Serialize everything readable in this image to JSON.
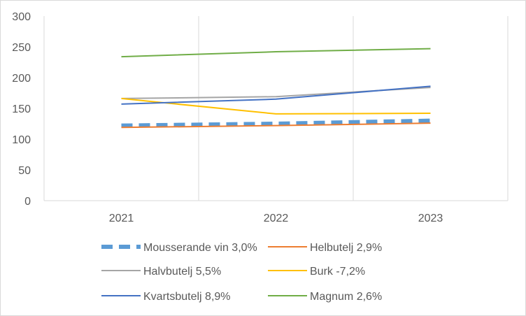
{
  "chart_data": {
    "type": "line",
    "title": "",
    "xlabel": "",
    "ylabel": "",
    "categories": [
      "2021",
      "2022",
      "2023"
    ],
    "ylim": [
      0,
      300
    ],
    "yticks": [
      "0",
      "50",
      "100",
      "150",
      "200",
      "250",
      "300"
    ],
    "grid": "vertical",
    "legend_position": "bottom",
    "series": [
      {
        "name": "Mousserande vin 3,0%",
        "values": [
          122,
          125,
          130
        ],
        "color": "#5b9bd5",
        "style": "dashed-thick"
      },
      {
        "name": "Helbutelj 2,9%",
        "values": [
          119,
          122,
          126
        ],
        "color": "#ed7d31",
        "style": "solid"
      },
      {
        "name": "Halvbutelj 5,5%",
        "values": [
          166,
          169,
          184
        ],
        "color": "#a5a5a5",
        "style": "solid"
      },
      {
        "name": "Burk -7,2%",
        "values": [
          166,
          141,
          142
        ],
        "color": "#ffc000",
        "style": "solid"
      },
      {
        "name": "Kvartsbutelj 8,9%",
        "values": [
          157,
          165,
          186
        ],
        "color": "#4472c4",
        "style": "solid"
      },
      {
        "name": "Magnum 2,6%",
        "values": [
          234,
          242,
          247
        ],
        "color": "#70ad47",
        "style": "solid"
      }
    ]
  }
}
